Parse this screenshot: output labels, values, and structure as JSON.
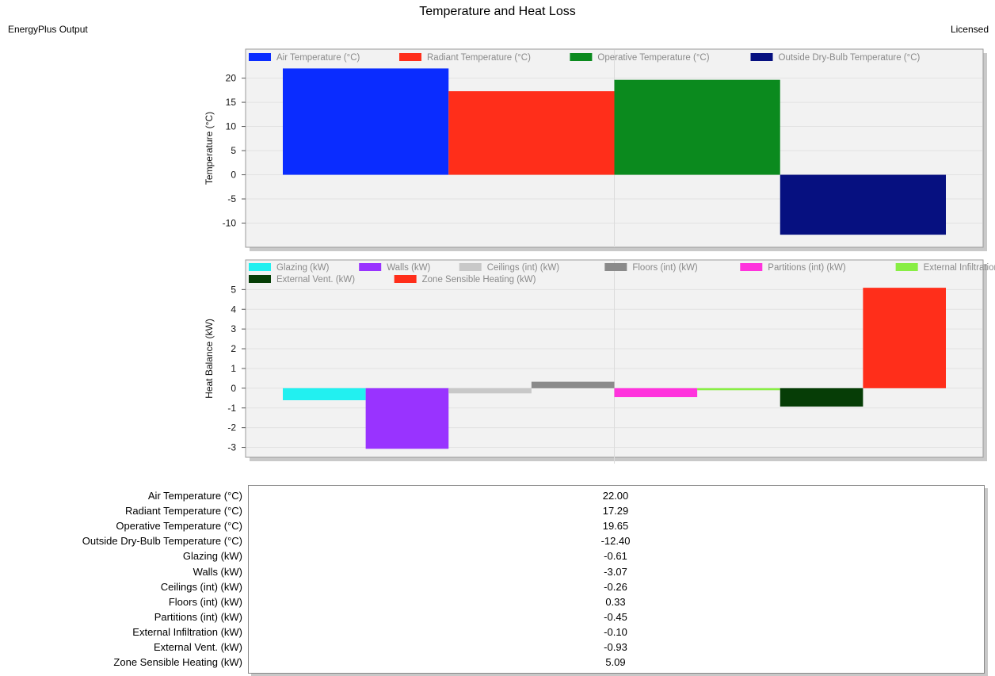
{
  "header": {
    "title": "Temperature and Heat Loss",
    "left_label": "EnergyPlus Output",
    "right_label": "Licensed"
  },
  "chart_data": [
    {
      "type": "bar",
      "ylabel": "Temperature (°C)",
      "ylim": [
        -15,
        26
      ],
      "yticks": [
        -10,
        -5,
        0,
        5,
        10,
        15,
        20
      ],
      "grid": true,
      "legend": "top",
      "series": [
        {
          "name": "Air Temperature (°C)",
          "value": 22.0,
          "color": "#0a2cff"
        },
        {
          "name": "Radiant Temperature (°C)",
          "value": 17.29,
          "color": "#ff2e1a"
        },
        {
          "name": "Operative Temperature (°C)",
          "value": 19.65,
          "color": "#0b8a1e"
        },
        {
          "name": "Outside Dry-Bulb Temperature (°C)",
          "value": -12.4,
          "color": "#061080"
        }
      ]
    },
    {
      "type": "bar",
      "ylabel": "Heat Balance (kW)",
      "ylim": [
        -3.5,
        6.5
      ],
      "yticks": [
        -3,
        -2,
        -1,
        0,
        1,
        2,
        3,
        4,
        5
      ],
      "grid": true,
      "legend": "top",
      "series": [
        {
          "name": "Glazing (kW)",
          "value": -0.61,
          "color": "#22f0f0"
        },
        {
          "name": "Walls (kW)",
          "value": -3.07,
          "color": "#9933ff"
        },
        {
          "name": "Ceilings (int) (kW)",
          "value": -0.26,
          "color": "#c8c8c8"
        },
        {
          "name": "Floors (int) (kW)",
          "value": 0.33,
          "color": "#8a8a8a"
        },
        {
          "name": "Partitions (int) (kW)",
          "value": -0.45,
          "color": "#ff33dd"
        },
        {
          "name": "External Infiltration (kW)",
          "value": -0.1,
          "color": "#88ee44"
        },
        {
          "name": "External Vent. (kW)",
          "value": -0.93,
          "color": "#063d06"
        },
        {
          "name": "Zone Sensible Heating (kW)",
          "value": 5.09,
          "color": "#ff2e1a"
        }
      ]
    }
  ],
  "table": {
    "rows": [
      {
        "label": "Air Temperature (°C)",
        "value": "22.00"
      },
      {
        "label": "Radiant Temperature (°C)",
        "value": "17.29"
      },
      {
        "label": "Operative Temperature (°C)",
        "value": "19.65"
      },
      {
        "label": "Outside Dry-Bulb Temperature (°C)",
        "value": "-12.40"
      },
      {
        "label": "Glazing (kW)",
        "value": "-0.61"
      },
      {
        "label": "Walls (kW)",
        "value": "-3.07"
      },
      {
        "label": "Ceilings (int) (kW)",
        "value": "-0.26"
      },
      {
        "label": "Floors (int) (kW)",
        "value": "0.33"
      },
      {
        "label": "Partitions (int) (kW)",
        "value": "-0.45"
      },
      {
        "label": "External Infiltration (kW)",
        "value": "-0.10"
      },
      {
        "label": "External Vent. (kW)",
        "value": "-0.93"
      },
      {
        "label": "Zone Sensible Heating (kW)",
        "value": "5.09"
      }
    ]
  }
}
